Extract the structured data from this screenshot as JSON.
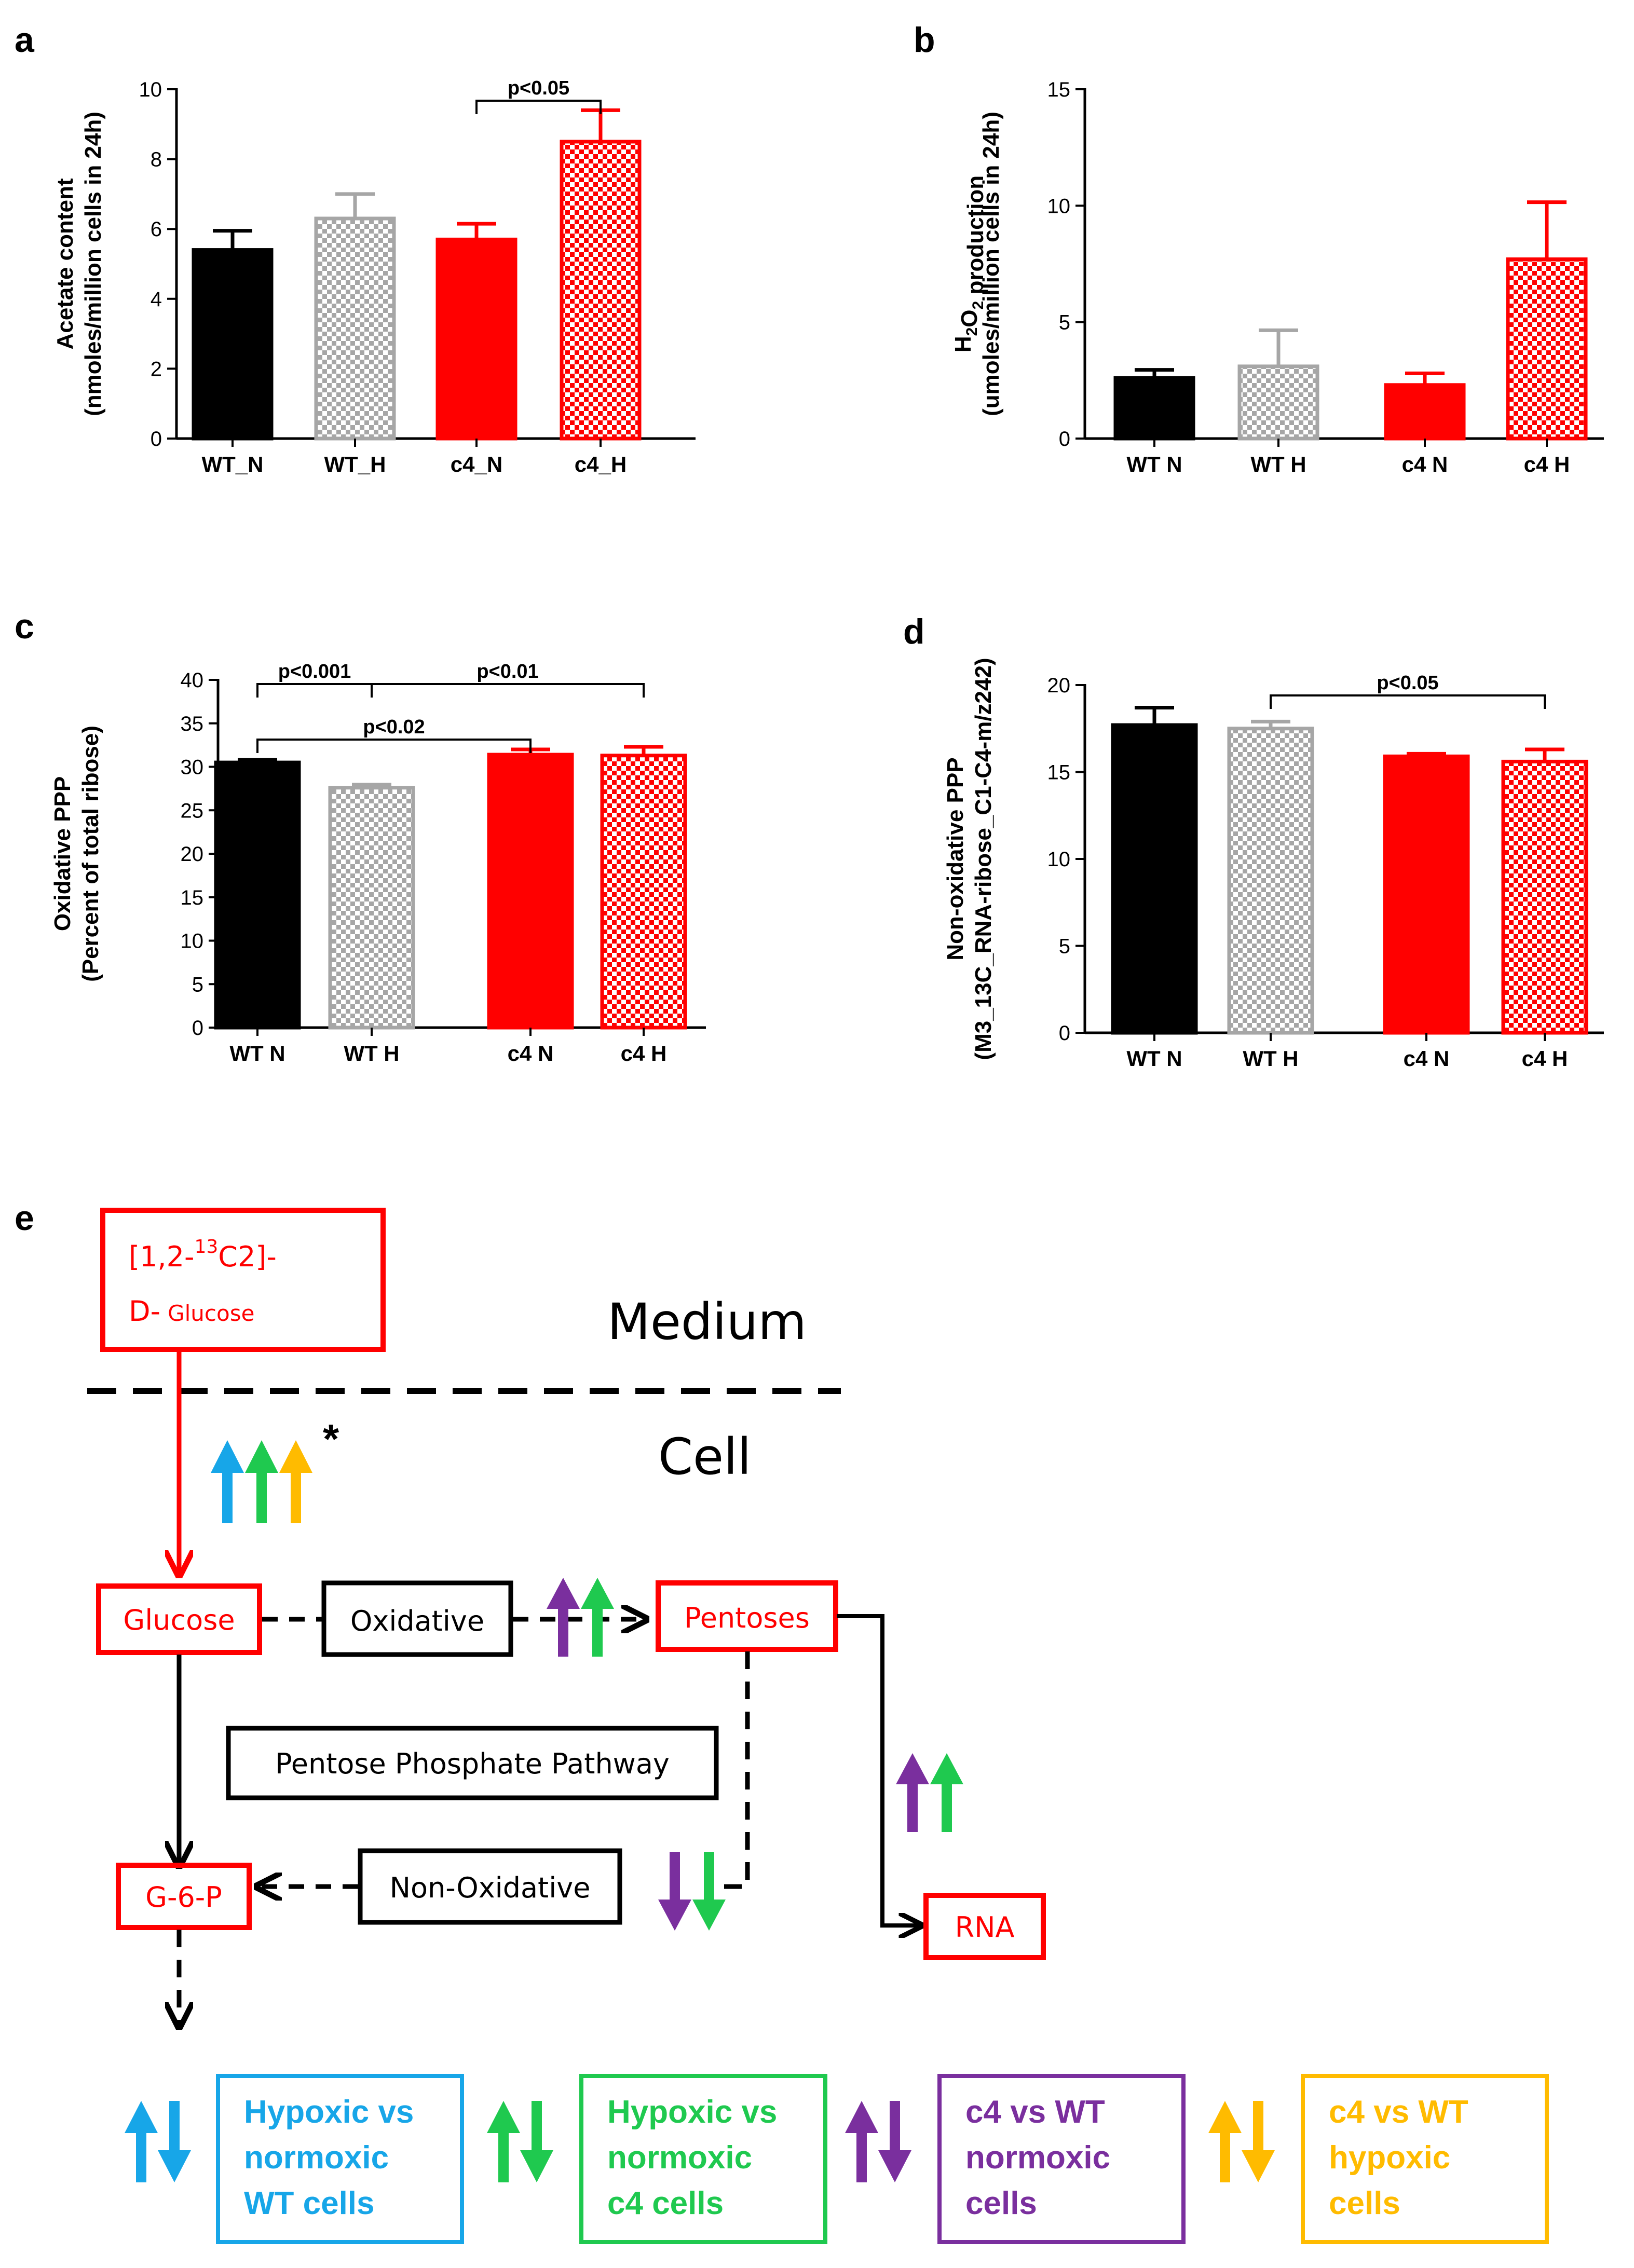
{
  "colors": {
    "black": "#000000",
    "gray": "#a6a6a6",
    "red": "#ff0000",
    "blue": "#17a6e8",
    "green": "#1fc94f",
    "purple": "#7a2f9e",
    "orange": "#ffbb00"
  },
  "chart_data": [
    {
      "panel": "a",
      "type": "bar",
      "ylabel_line1": "Acetate content",
      "ylabel_line2": "(nmoles/million cells in 24h)",
      "ylim": [
        0,
        10
      ],
      "ytick_values": [
        0,
        2,
        4,
        6,
        8,
        10
      ],
      "yticks": [
        "0",
        "2",
        "4",
        "6",
        "8",
        "10"
      ],
      "categories": [
        "WT_N",
        "WT_H",
        "c4_N",
        "c4_H"
      ],
      "values": [
        5.4,
        6.3,
        5.7,
        8.5
      ],
      "errors": [
        0.55,
        0.7,
        0.45,
        0.9
      ],
      "significance": [
        {
          "label": "p<0.05",
          "from": 2,
          "to": 3
        }
      ]
    },
    {
      "panel": "b",
      "type": "bar",
      "ylabel_line1": "H2O2 production",
      "ylabel_line2": "(umoles/million cells in 24h)",
      "ylim": [
        0,
        15
      ],
      "ytick_values": [
        0,
        5,
        10,
        15
      ],
      "yticks": [
        "0",
        "5",
        "10",
        "15"
      ],
      "categories": [
        "WT N",
        "WT H",
        "c4 N",
        "c4 H"
      ],
      "values": [
        2.6,
        3.1,
        2.3,
        7.7
      ],
      "errors": [
        0.35,
        1.55,
        0.5,
        2.45
      ],
      "significance": []
    },
    {
      "panel": "c",
      "type": "bar",
      "ylabel_line1": "Oxidative PPP",
      "ylabel_line2": "(Percent of total ribose)",
      "ylim": [
        0,
        40
      ],
      "ytick_values": [
        0,
        5,
        10,
        15,
        20,
        25,
        30,
        35,
        40
      ],
      "yticks": [
        "0",
        "5",
        "10",
        "15",
        "20",
        "25",
        "30",
        "35",
        "40"
      ],
      "categories": [
        "WT N",
        "WT H",
        "c4 N",
        "c4 H"
      ],
      "values": [
        30.5,
        27.6,
        31.4,
        31.3
      ],
      "errors": [
        0.3,
        0.35,
        0.6,
        1.0
      ],
      "significance": [
        {
          "label": "p<0.001",
          "from": 0,
          "to": 1
        },
        {
          "label": "p<0.01",
          "from": 1,
          "to": 3
        },
        {
          "label": "p<0.02",
          "from": 0,
          "to": 2
        }
      ]
    },
    {
      "panel": "d",
      "type": "bar",
      "ylabel_line1": "Non-oxidative PPP",
      "ylabel_line2": "(M3_13C_RNA-ribose_C1-C4-m/z242)",
      "ylim": [
        0,
        20
      ],
      "ytick_values": [
        0,
        5,
        10,
        15,
        20
      ],
      "yticks": [
        "0",
        "5",
        "10",
        "15",
        "20"
      ],
      "categories": [
        "WT N",
        "WT H",
        "c4 N",
        "c4 H"
      ],
      "values": [
        17.7,
        17.5,
        15.9,
        15.6
      ],
      "errors": [
        1.0,
        0.4,
        0.15,
        0.7
      ],
      "significance": [
        {
          "label": "p<0.05",
          "from": 1,
          "to": 3
        }
      ]
    }
  ],
  "diagram": {
    "panel_label": "e",
    "substrate_pre": "[1,2-",
    "substrate_sup": "13",
    "substrate_mid": "C2]-",
    "substrate_line2": "D-",
    "substrate_small": "Glucose",
    "medium": "Medium",
    "cell": "Cell",
    "asterisk": "*",
    "glucose": "Glucose",
    "oxidative": "Oxidative",
    "pentoses": "Pentoses",
    "ppp": "Pentose Phosphate Pathway",
    "g6p": "G-6-P",
    "non_oxidative": "Non-Oxidative",
    "rna": "RNA"
  },
  "legend": [
    {
      "line1": "Hypoxic vs",
      "line2": "normoxic",
      "line3": "WT cells",
      "color": "#17a6e8"
    },
    {
      "line1": "Hypoxic vs",
      "line2": "normoxic",
      "line3": "c4 cells",
      "color": "#1fc94f"
    },
    {
      "line1": "c4 vs WT",
      "line2": "normoxic",
      "line3": "cells",
      "color": "#7a2f9e"
    },
    {
      "line1": "c4 vs WT",
      "line2": "hypoxic",
      "line3": "cells",
      "color": "#ffbb00"
    }
  ]
}
